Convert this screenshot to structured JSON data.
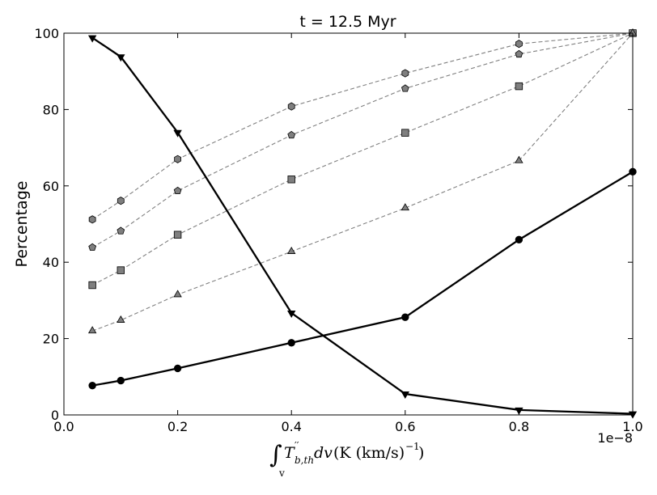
{
  "chart_data": {
    "type": "line",
    "title": "t = 12.5 Myr",
    "ylabel": "Percentage",
    "xlabel": {
      "integral_sign": "∫",
      "integral_subscript": "v",
      "base": "T",
      "superscript": "′′",
      "subscript": "b,th",
      "differential": "dv",
      "units": "(K (km/s)",
      "units_exponent": "−1",
      "units_close": ")"
    },
    "x_offset_label": "1e−8",
    "x_scale": 1e-08,
    "xlim": [
      0.0,
      1.0
    ],
    "ylim": [
      0,
      100
    ],
    "xticks": [
      "0.0",
      "0.2",
      "0.4",
      "0.6",
      "0.8",
      "1.0"
    ],
    "yticks": [
      "0",
      "20",
      "40",
      "60",
      "80",
      "100"
    ],
    "grid": false,
    "legend": "none",
    "series": [
      {
        "marker": "triangle-down",
        "style": "solid",
        "color": "#000000",
        "x": [
          0.05,
          0.1,
          0.2,
          0.4,
          0.6,
          0.8,
          1.0
        ],
        "y": [
          98.8,
          93.8,
          74.0,
          26.7,
          5.5,
          1.3,
          0.3
        ]
      },
      {
        "marker": "circle",
        "style": "solid",
        "color": "#000000",
        "x": [
          0.05,
          0.1,
          0.2,
          0.4,
          0.6,
          0.8,
          1.0
        ],
        "y": [
          7.7,
          9.0,
          12.2,
          18.9,
          25.6,
          45.9,
          63.7
        ]
      },
      {
        "marker": "hexagon",
        "style": "dashed",
        "color": "#808080",
        "x": [
          0.05,
          0.1,
          0.2,
          0.4,
          0.6,
          0.8,
          1.0
        ],
        "y": [
          51.2,
          56.1,
          67.0,
          80.8,
          89.5,
          97.2,
          100.0
        ]
      },
      {
        "marker": "pentagon",
        "style": "dashed",
        "color": "#808080",
        "x": [
          0.05,
          0.1,
          0.2,
          0.4,
          0.6,
          0.8,
          1.0
        ],
        "y": [
          43.9,
          48.2,
          58.7,
          73.3,
          85.5,
          94.5,
          100.0
        ]
      },
      {
        "marker": "square",
        "style": "dashed",
        "color": "#808080",
        "x": [
          0.05,
          0.1,
          0.2,
          0.4,
          0.6,
          0.8,
          1.0
        ],
        "y": [
          34.0,
          37.9,
          47.2,
          61.7,
          73.9,
          86.1,
          100.0
        ]
      },
      {
        "marker": "triangle-up",
        "style": "dashed",
        "color": "#808080",
        "x": [
          0.05,
          0.1,
          0.2,
          0.4,
          0.6,
          0.8,
          1.0
        ],
        "y": [
          22.0,
          24.8,
          31.5,
          42.8,
          54.2,
          66.6,
          100.0
        ]
      }
    ]
  }
}
